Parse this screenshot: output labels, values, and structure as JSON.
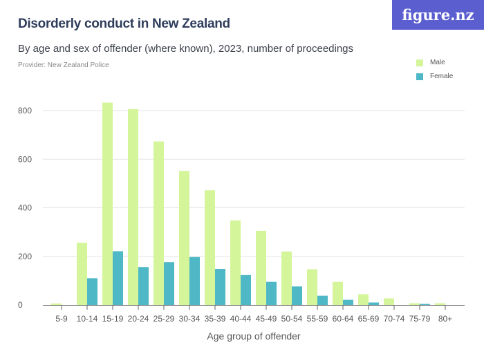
{
  "title": "Disorderly conduct in New Zealand",
  "subtitle": "By age and sex of offender (where known), 2023, number of proceedings",
  "provider": "Provider: New Zealand Police",
  "logo": "figure.nz",
  "colors": {
    "male": "#d4f59a",
    "female": "#4fb8c7",
    "logo_bg": "#5a5ecf",
    "title": "#2f3d5c"
  },
  "chart_data": {
    "type": "bar",
    "title": "Disorderly conduct in New Zealand",
    "xlabel": "Age group of offender",
    "ylabel": "",
    "ylim": [
      0,
      800
    ],
    "yticks": [
      0,
      200,
      400,
      600,
      800
    ],
    "grid": true,
    "legend_position": "top-right",
    "categories": [
      "5-9",
      "10-14",
      "15-19",
      "20-24",
      "25-29",
      "30-34",
      "35-39",
      "40-44",
      "45-49",
      "50-54",
      "55-59",
      "60-64",
      "65-69",
      "70-74",
      "75-79",
      "80+"
    ],
    "series": [
      {
        "name": "Male",
        "values": [
          6,
          256,
          833,
          806,
          673,
          552,
          472,
          348,
          305,
          220,
          147,
          95,
          44,
          27,
          7,
          7
        ]
      },
      {
        "name": "Female",
        "values": [
          0,
          110,
          221,
          156,
          176,
          197,
          148,
          123,
          95,
          76,
          38,
          21,
          10,
          0,
          4,
          0
        ]
      }
    ]
  }
}
